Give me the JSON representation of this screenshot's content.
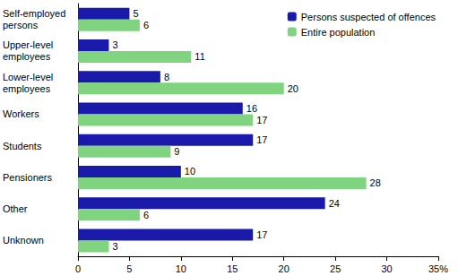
{
  "chart_data": {
    "type": "bar",
    "orientation": "horizontal",
    "categories": [
      "Self-employed persons",
      "Upper-level employees",
      "Lower-level employees",
      "Workers",
      "Students",
      "Pensioners",
      "Other",
      "Unknown"
    ],
    "series": [
      {
        "name": "Persons suspected of offences",
        "color": "#1a1aaa",
        "values": [
          5,
          3,
          8,
          16,
          17,
          10,
          24,
          17
        ]
      },
      {
        "name": "Entire population",
        "color": "#80d480",
        "values": [
          6,
          11,
          20,
          17,
          9,
          28,
          6,
          3
        ]
      }
    ],
    "xlim": [
      0,
      35
    ],
    "xticks": [
      0,
      5,
      10,
      15,
      20,
      25,
      30,
      {
        "value": 35,
        "label": "35%"
      }
    ],
    "grid": false,
    "legend": "upper right",
    "data_labels": true
  }
}
